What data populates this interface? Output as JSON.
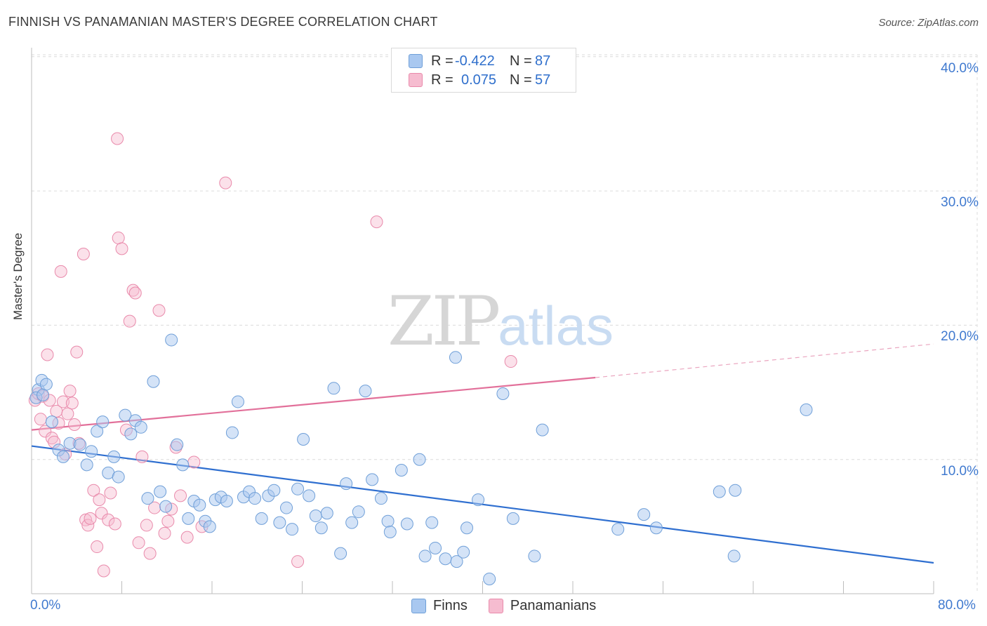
{
  "header": {
    "title": "FINNISH VS PANAMANIAN MASTER'S DEGREE CORRELATION CHART",
    "source": "Source: ZipAtlas.com"
  },
  "watermark": {
    "zip": "ZIP",
    "atlas": "atlas"
  },
  "legend_top": {
    "rows": [
      {
        "r_label": "R =",
        "r_value": "-0.422",
        "n_label": "N =",
        "n_value": "87"
      },
      {
        "r_label": "R =",
        "r_value": "0.075",
        "n_label": "N =",
        "n_value": "57"
      }
    ]
  },
  "legend_bottom": {
    "finns": "Finns",
    "panamanians": "Panamanians"
  },
  "axes": {
    "ylabel": "Master's Degree",
    "y_ticks": [
      "40.0%",
      "30.0%",
      "20.0%",
      "10.0%"
    ],
    "x_min_label": "0.0%",
    "x_max_label": "80.0%"
  },
  "colors": {
    "finns_fill": "#a9c8f0",
    "finns_stroke": "#6f9fd8",
    "finns_line": "#2f6fd0",
    "pan_fill": "#f6bcd0",
    "pan_stroke": "#e98aab",
    "pan_line": "#e2709a",
    "axis_blue": "#3f79cf"
  },
  "chart_data": {
    "type": "scatter",
    "xlabel": "",
    "ylabel": "Master's Degree",
    "xlim": [
      0,
      80
    ],
    "ylim": [
      0,
      42
    ],
    "grid": true,
    "series": [
      {
        "name": "Finns",
        "trend": {
          "x": [
            0,
            80
          ],
          "y": [
            11.0,
            2.3
          ],
          "r": -0.422,
          "n": 87
        },
        "points": [
          [
            0.6,
            15.2
          ],
          [
            0.9,
            15.9
          ],
          [
            1.3,
            15.6
          ],
          [
            1.8,
            12.8
          ],
          [
            2.4,
            10.7
          ],
          [
            2.8,
            10.2
          ],
          [
            3.4,
            11.2
          ],
          [
            4.3,
            11.1
          ],
          [
            4.9,
            9.6
          ],
          [
            5.3,
            10.6
          ],
          [
            5.8,
            12.1
          ],
          [
            6.3,
            12.8
          ],
          [
            6.8,
            9.0
          ],
          [
            7.3,
            10.2
          ],
          [
            7.7,
            8.7
          ],
          [
            8.3,
            13.3
          ],
          [
            8.8,
            11.9
          ],
          [
            9.2,
            12.9
          ],
          [
            9.7,
            12.4
          ],
          [
            10.3,
            7.1
          ],
          [
            10.8,
            15.8
          ],
          [
            11.4,
            7.6
          ],
          [
            11.9,
            6.5
          ],
          [
            12.4,
            18.9
          ],
          [
            12.9,
            11.1
          ],
          [
            13.4,
            9.6
          ],
          [
            13.9,
            5.6
          ],
          [
            14.4,
            6.9
          ],
          [
            14.9,
            6.6
          ],
          [
            15.4,
            5.4
          ],
          [
            15.8,
            5.0
          ],
          [
            16.3,
            7.0
          ],
          [
            16.8,
            7.2
          ],
          [
            17.3,
            6.9
          ],
          [
            17.8,
            12.0
          ],
          [
            18.3,
            14.3
          ],
          [
            18.8,
            7.2
          ],
          [
            19.3,
            7.6
          ],
          [
            19.8,
            7.1
          ],
          [
            20.4,
            5.6
          ],
          [
            21.0,
            7.3
          ],
          [
            21.5,
            7.7
          ],
          [
            22.0,
            5.3
          ],
          [
            22.6,
            6.4
          ],
          [
            23.1,
            4.8
          ],
          [
            23.6,
            7.8
          ],
          [
            24.1,
            11.5
          ],
          [
            24.6,
            7.3
          ],
          [
            25.2,
            5.8
          ],
          [
            25.7,
            4.9
          ],
          [
            26.2,
            6.0
          ],
          [
            26.8,
            15.3
          ],
          [
            27.4,
            3.0
          ],
          [
            27.9,
            8.2
          ],
          [
            28.4,
            5.3
          ],
          [
            29.0,
            6.1
          ],
          [
            29.6,
            15.1
          ],
          [
            30.2,
            8.5
          ],
          [
            31.0,
            7.1
          ],
          [
            31.6,
            5.4
          ],
          [
            31.8,
            4.6
          ],
          [
            32.8,
            9.2
          ],
          [
            33.3,
            5.2
          ],
          [
            34.4,
            10.0
          ],
          [
            34.9,
            2.8
          ],
          [
            35.5,
            5.3
          ],
          [
            35.8,
            3.4
          ],
          [
            36.7,
            2.6
          ],
          [
            37.6,
            17.6
          ],
          [
            37.7,
            2.4
          ],
          [
            38.3,
            3.1
          ],
          [
            38.6,
            4.9
          ],
          [
            39.6,
            7.0
          ],
          [
            40.6,
            1.1
          ],
          [
            41.8,
            14.9
          ],
          [
            42.7,
            5.6
          ],
          [
            44.6,
            2.8
          ],
          [
            45.3,
            12.2
          ],
          [
            52.0,
            4.8
          ],
          [
            54.3,
            5.9
          ],
          [
            55.4,
            4.9
          ],
          [
            61.0,
            7.6
          ],
          [
            62.3,
            2.8
          ],
          [
            62.4,
            7.7
          ],
          [
            68.7,
            13.7
          ],
          [
            0.4,
            14.6
          ],
          [
            1.0,
            14.8
          ]
        ]
      },
      {
        "name": "Panamanians",
        "trend": {
          "x": [
            0,
            50
          ],
          "y": [
            12.2,
            16.1
          ],
          "dashed_to": [
            80,
            18.6
          ],
          "r": 0.075,
          "n": 57
        },
        "points": [
          [
            0.3,
            14.4
          ],
          [
            0.6,
            14.9
          ],
          [
            0.8,
            13.0
          ],
          [
            1.0,
            14.7
          ],
          [
            1.2,
            12.1
          ],
          [
            1.4,
            17.8
          ],
          [
            1.6,
            14.4
          ],
          [
            1.8,
            11.6
          ],
          [
            2.0,
            11.3
          ],
          [
            2.2,
            13.6
          ],
          [
            2.4,
            12.7
          ],
          [
            2.6,
            24.0
          ],
          [
            2.8,
            14.3
          ],
          [
            3.0,
            10.4
          ],
          [
            3.2,
            13.4
          ],
          [
            3.4,
            15.1
          ],
          [
            3.6,
            14.2
          ],
          [
            3.8,
            12.6
          ],
          [
            4.0,
            18.0
          ],
          [
            4.2,
            11.2
          ],
          [
            4.6,
            25.3
          ],
          [
            4.8,
            5.5
          ],
          [
            5.0,
            5.1
          ],
          [
            5.2,
            5.6
          ],
          [
            5.5,
            7.7
          ],
          [
            5.8,
            3.5
          ],
          [
            6.0,
            7.0
          ],
          [
            6.2,
            6.0
          ],
          [
            6.4,
            1.7
          ],
          [
            6.8,
            5.5
          ],
          [
            7.0,
            7.5
          ],
          [
            7.4,
            5.2
          ],
          [
            7.7,
            26.5
          ],
          [
            8.0,
            25.7
          ],
          [
            8.4,
            12.2
          ],
          [
            8.7,
            20.3
          ],
          [
            9.0,
            22.6
          ],
          [
            9.2,
            22.4
          ],
          [
            9.5,
            3.8
          ],
          [
            9.8,
            10.2
          ],
          [
            10.2,
            5.1
          ],
          [
            10.5,
            3.0
          ],
          [
            10.9,
            6.4
          ],
          [
            11.3,
            21.1
          ],
          [
            11.8,
            4.5
          ],
          [
            12.1,
            5.4
          ],
          [
            12.4,
            6.3
          ],
          [
            12.8,
            10.9
          ],
          [
            13.2,
            7.3
          ],
          [
            13.8,
            4.2
          ],
          [
            14.4,
            9.8
          ],
          [
            15.1,
            5.0
          ],
          [
            17.2,
            30.6
          ],
          [
            23.6,
            2.4
          ],
          [
            30.6,
            27.7
          ],
          [
            42.5,
            17.3
          ],
          [
            7.6,
            33.9
          ]
        ]
      }
    ]
  }
}
